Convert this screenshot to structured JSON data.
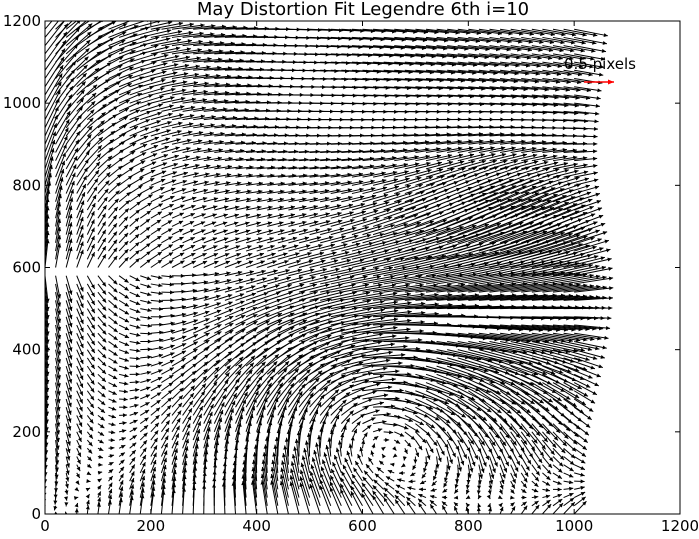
{
  "chart_data": {
    "type": "quiver",
    "title": "May Distortion Fit Legendre 6th i=10",
    "xlabel": "",
    "ylabel": "",
    "xlim": [
      0,
      1200
    ],
    "ylim": [
      0,
      1200
    ],
    "x_ticks": [
      0,
      200,
      400,
      600,
      800,
      1000,
      1200
    ],
    "y_ticks": [
      0,
      200,
      400,
      600,
      800,
      1000,
      1200
    ],
    "x_tick_labels": [
      "0",
      "200",
      "400",
      "600",
      "800",
      "1000",
      "1200"
    ],
    "y_tick_labels": [
      "0",
      "200",
      "400",
      "600",
      "800",
      "1000",
      "1200"
    ],
    "grid": false,
    "arrow_color": "#000000",
    "key": {
      "label": "0.5 pixels",
      "length_pixels": 0.5,
      "color": "#ff0000"
    },
    "field_samples": {
      "note_units": "arrow components in data units per grid cell",
      "grid_x": [
        0,
        20,
        40,
        60,
        80,
        100,
        120,
        140,
        160,
        180,
        200,
        220,
        240,
        260,
        280,
        300,
        320,
        340,
        360,
        380,
        400,
        420,
        440,
        460,
        480,
        500,
        520,
        540,
        560,
        580,
        600,
        620,
        640,
        660,
        680,
        700,
        720,
        740,
        760,
        780,
        800,
        820,
        840,
        860,
        880,
        900,
        920,
        940,
        960,
        980,
        1000
      ],
      "grid_y": [
        0,
        20,
        40,
        60,
        80,
        100,
        120,
        140,
        160,
        180,
        200,
        220,
        240,
        260,
        280,
        300,
        320,
        340,
        360,
        380,
        400,
        420,
        440,
        460,
        480,
        500,
        520,
        540,
        560,
        580,
        600,
        620,
        640,
        660,
        680,
        700,
        720,
        740,
        760,
        780,
        800,
        820,
        840,
        860,
        880,
        900,
        920,
        940,
        960,
        980,
        1000,
        1020,
        1040,
        1060,
        1080,
        1100,
        1120,
        1140,
        1160,
        1180
      ]
    }
  }
}
